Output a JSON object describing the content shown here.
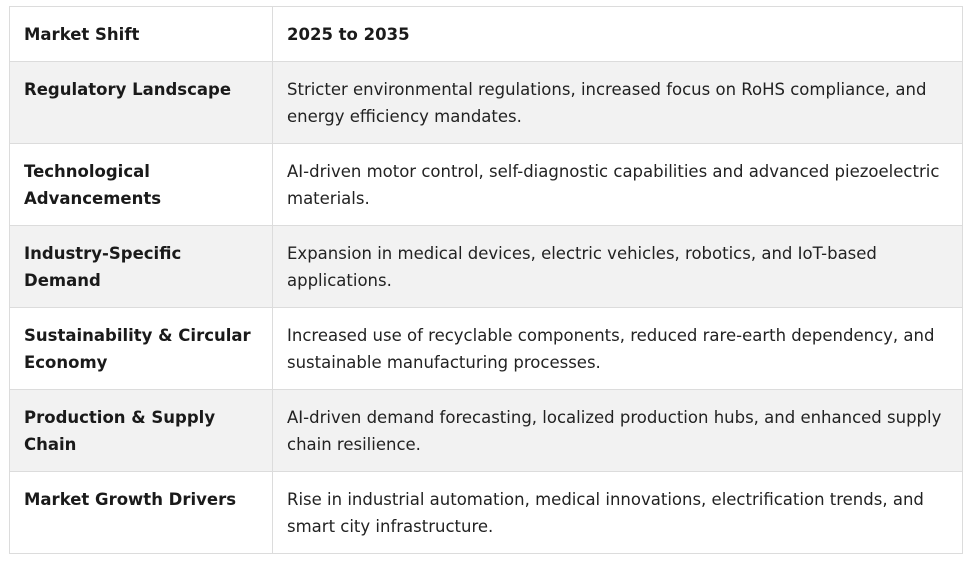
{
  "table": {
    "headers": [
      "Market Shift",
      "2025 to 2035"
    ],
    "rows": [
      {
        "label": "Regulatory Landscape",
        "value": "Stricter environmental regulations, increased focus on RoHS compliance, and energy efficiency mandates."
      },
      {
        "label": "Technological Advancements",
        "value": "AI-driven motor control, self-diagnostic capabilities and advanced piezoelectric materials."
      },
      {
        "label": "Industry-Specific Demand",
        "value": "Expansion in medical devices, electric vehicles, robotics, and IoT-based applications."
      },
      {
        "label": "Sustainability & Circular Economy",
        "value": "Increased use of recyclable components, reduced rare-earth dependency, and sustainable manufacturing processes."
      },
      {
        "label": "Production & Supply Chain",
        "value": "AI-driven demand forecasting, localized production hubs, and enhanced supply chain resilience."
      },
      {
        "label": "Market Growth Drivers",
        "value": "Rise in industrial automation, medical innovations, electrification trends, and smart city infrastructure."
      }
    ]
  }
}
